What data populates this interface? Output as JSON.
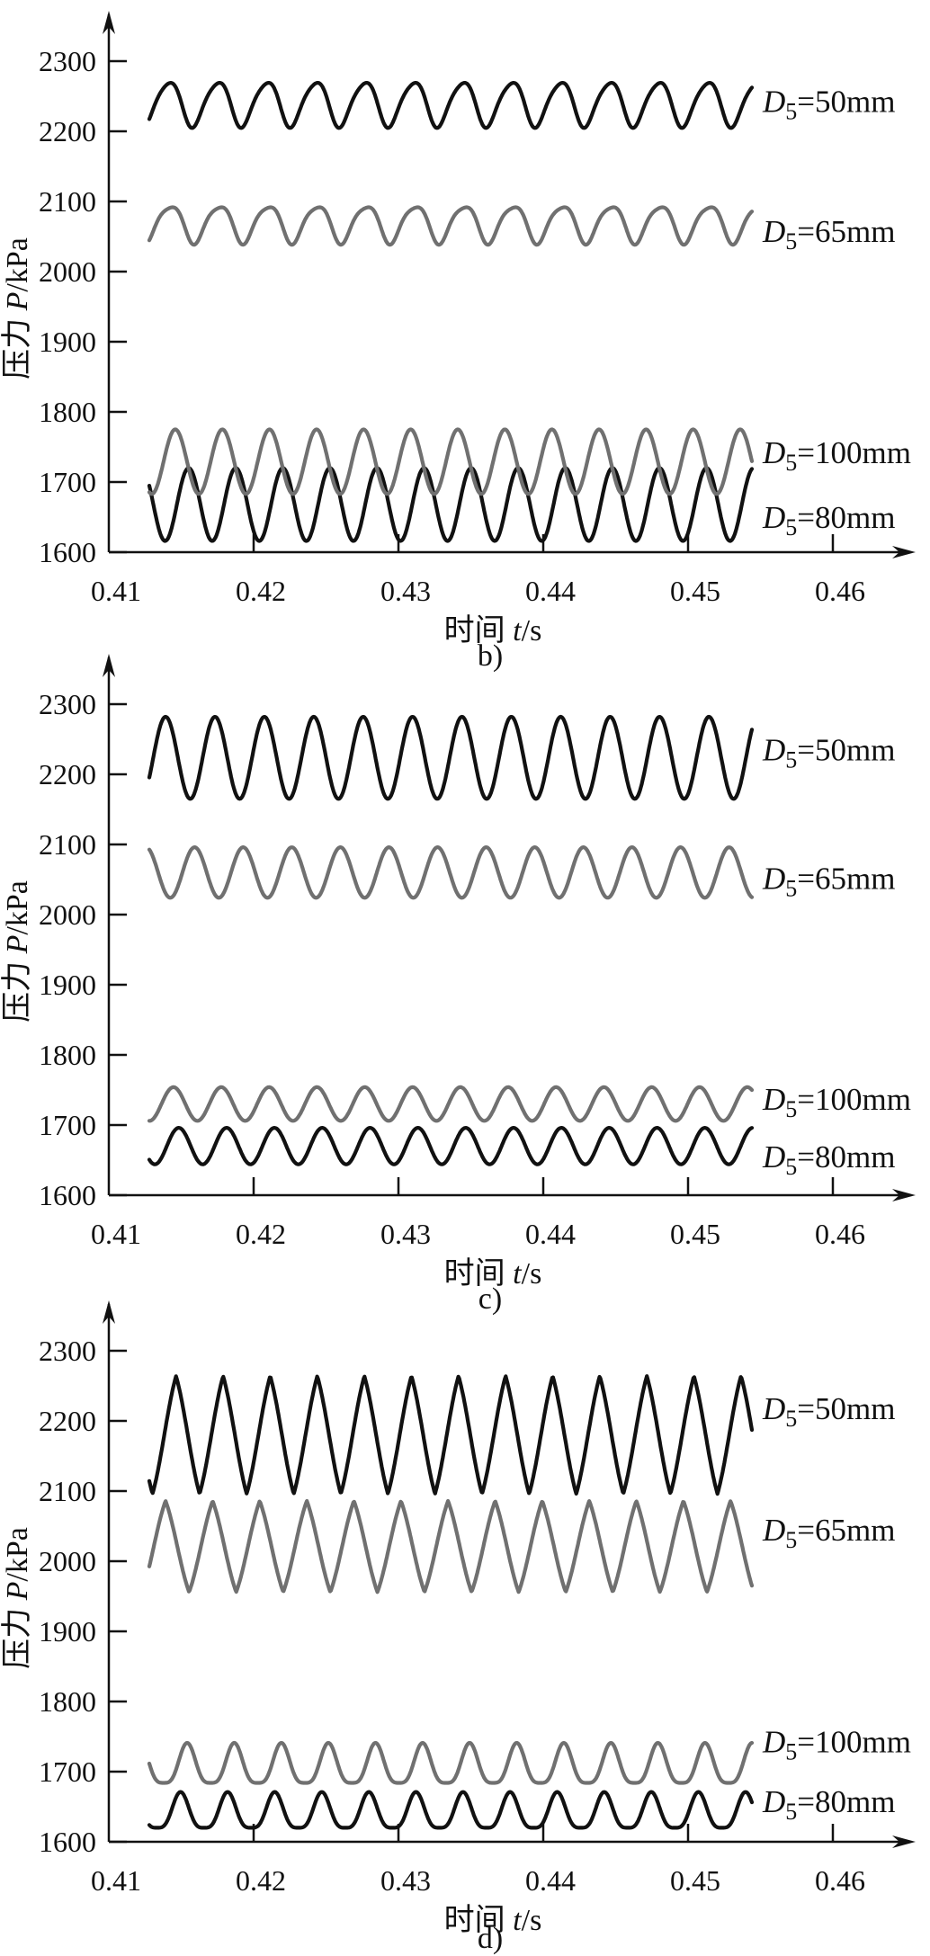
{
  "figure": {
    "title": "",
    "accent_black": "#111111",
    "accent_gray": "#707070"
  },
  "chart_data": [
    {
      "id": "b",
      "caption": "b)",
      "type": "line",
      "xlabel_parts": {
        "cn": "时间",
        "it": "t",
        "unit": "/s"
      },
      "ylabel_parts": {
        "cn": "压力",
        "it": "P",
        "unit": "/kPa"
      },
      "x_ticks": [
        "0.41",
        "0.42",
        "0.43",
        "0.44",
        "0.45",
        "0.46"
      ],
      "y_ticks": [
        "2300",
        "2200",
        "2100",
        "2000",
        "1900",
        "1800",
        "1700",
        "1600"
      ],
      "xlim": [
        0.41,
        0.465
      ],
      "ylim": [
        1600,
        2380
      ],
      "x_data_range": [
        0.413,
        0.454
      ],
      "grid": false,
      "legend_position": "right-of-curves",
      "series": [
        {
          "name": "D5=50mm",
          "label": {
            "sym": "D",
            "sub": "5",
            "val": "=50mm"
          },
          "color": "black",
          "waveform": "harm2",
          "min": 2204,
          "max": 2276,
          "cycles": 12.3,
          "phase": -0.9,
          "a2": 0.14,
          "p2": 2.3,
          "label_value": 2243
        },
        {
          "name": "D5=65mm",
          "label": {
            "sym": "D",
            "sub": "5",
            "val": "=65mm"
          },
          "color": "gray",
          "waveform": "harm2",
          "min": 2038,
          "max": 2100,
          "cycles": 12.3,
          "phase": -1.1,
          "a2": 0.18,
          "p2": 2.0,
          "label_value": 2058
        },
        {
          "name": "D5=80mm",
          "label": {
            "sym": "D",
            "sub": "5",
            "val": "=80mm"
          },
          "color": "black",
          "waveform": "sine",
          "min": 1616,
          "max": 1720,
          "cycles": 12.8,
          "phase": 2.6,
          "label_value": 1650
        },
        {
          "name": "D5=100mm",
          "label": {
            "sym": "D",
            "sub": "5",
            "val": "=100mm"
          },
          "color": "gray",
          "waveform": "sine",
          "min": 1683,
          "max": 1775,
          "cycles": 12.8,
          "phase": -1.9,
          "label_value": 1742
        }
      ]
    },
    {
      "id": "c",
      "caption": "c)",
      "type": "line",
      "xlabel_parts": {
        "cn": "时间",
        "it": "t",
        "unit": "/s"
      },
      "ylabel_parts": {
        "cn": "压力",
        "it": "P",
        "unit": "/kPa"
      },
      "x_ticks": [
        "0.41",
        "0.42",
        "0.43",
        "0.44",
        "0.45",
        "0.46"
      ],
      "y_ticks": [
        "2300",
        "2200",
        "2100",
        "2000",
        "1900",
        "1800",
        "1700",
        "1600"
      ],
      "xlim": [
        0.41,
        0.465
      ],
      "ylim": [
        1600,
        2380
      ],
      "x_data_range": [
        0.413,
        0.453
      ],
      "grid": false,
      "legend_position": "right-of-curves",
      "series": [
        {
          "name": "D5=50mm",
          "label": {
            "sym": "D",
            "sub": "5",
            "val": "=50mm"
          },
          "color": "black",
          "waveform": "sine",
          "min": 2165,
          "max": 2282,
          "cycles": 12.2,
          "phase": -0.5,
          "label_value": 2235
        },
        {
          "name": "D5=65mm",
          "label": {
            "sym": "D",
            "sub": "5",
            "val": "=65mm"
          },
          "color": "gray",
          "waveform": "sine",
          "min": 2024,
          "max": 2096,
          "cycles": 12.4,
          "phase": 2.0,
          "label_value": 2052
        },
        {
          "name": "D5=100mm",
          "label": {
            "sym": "D",
            "sub": "5",
            "val": "=100mm"
          },
          "color": "gray",
          "waveform": "sine",
          "min": 1706,
          "max": 1754,
          "cycles": 12.6,
          "phase": -1.6,
          "label_value": 1737
        },
        {
          "name": "D5=80mm",
          "label": {
            "sym": "D",
            "sub": "5",
            "val": "=80mm"
          },
          "color": "black",
          "waveform": "sine",
          "min": 1644,
          "max": 1696,
          "cycles": 12.6,
          "phase": -2.3,
          "label_value": 1655
        }
      ]
    },
    {
      "id": "d",
      "caption": "d)",
      "type": "line",
      "xlabel_parts": {
        "cn": "时间",
        "it": "t",
        "unit": "/s"
      },
      "ylabel_parts": {
        "cn": "压力",
        "it": "P",
        "unit": "/kPa"
      },
      "x_ticks": [
        "0.41",
        "0.42",
        "0.43",
        "0.44",
        "0.45",
        "0.46"
      ],
      "y_ticks": [
        "2300",
        "2200",
        "2100",
        "2000",
        "1900",
        "1800",
        "1700",
        "1600"
      ],
      "xlim": [
        0.41,
        0.465
      ],
      "ylim": [
        1600,
        2380
      ],
      "x_data_range": [
        0.413,
        0.453
      ],
      "grid": false,
      "legend_position": "right-of-curves",
      "series": [
        {
          "name": "D5=50mm",
          "label": {
            "sym": "D",
            "sub": "5",
            "val": "=50mm"
          },
          "color": "black",
          "waveform": "tri",
          "mix": 0.7,
          "min": 2096,
          "max": 2264,
          "cycles": 12.8,
          "phase": -2.0,
          "label_value": 2218
        },
        {
          "name": "D5=65mm",
          "label": {
            "sym": "D",
            "sub": "5",
            "val": "=65mm"
          },
          "color": "gray",
          "waveform": "tri",
          "mix": 0.7,
          "min": 1956,
          "max": 2086,
          "cycles": 12.8,
          "phase": -0.6,
          "label_value": 2045
        },
        {
          "name": "D5=100mm",
          "label": {
            "sym": "D",
            "sub": "5",
            "val": "=100mm"
          },
          "color": "gray",
          "waveform": "peak",
          "p": 1.8,
          "min": 1684,
          "max": 1741,
          "cycles": 12.8,
          "phase": 2.8,
          "label_value": 1743
        },
        {
          "name": "D5=80mm",
          "label": {
            "sym": "D",
            "sub": "5",
            "val": "=80mm"
          },
          "color": "black",
          "waveform": "peak",
          "p": 1.8,
          "min": 1620,
          "max": 1671,
          "cycles": 12.8,
          "phase": -2.6,
          "label_value": 1658
        }
      ]
    }
  ]
}
